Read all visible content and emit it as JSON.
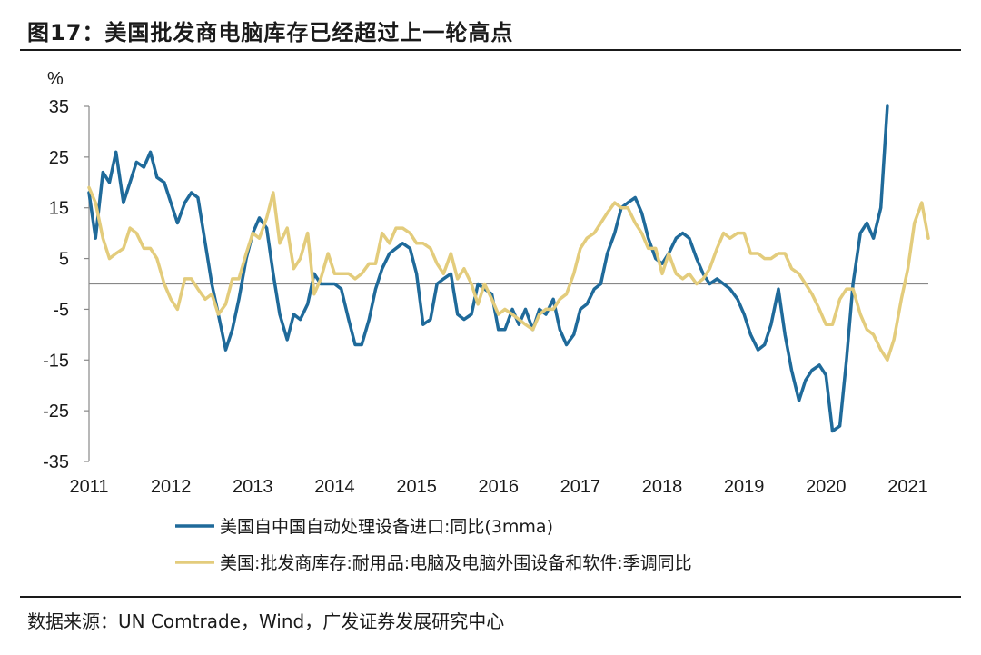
{
  "header": {
    "title": "图17：美国批发商电脑库存已经超过上一轮高点"
  },
  "footer": {
    "source": "数据来源：UN Comtrade，Wind，广发证券发展研究中心"
  },
  "colors": {
    "series1": "#1F6A9A",
    "series2": "#E3CC7C",
    "axis": "#888888"
  },
  "chart_data": {
    "type": "line",
    "title": "美国批发商电脑库存已经超过上一轮高点",
    "ylabel": "%",
    "xlabel": "",
    "ylim": [
      -35,
      35
    ],
    "yticks": [
      "35",
      "25",
      "15",
      "5",
      "-5",
      "-15",
      "-25",
      "-35"
    ],
    "yticks_values": [
      35,
      25,
      15,
      5,
      -5,
      -15,
      -25,
      -35
    ],
    "xticks": [
      "2011",
      "2012",
      "2013",
      "2014",
      "2015",
      "2016",
      "2017",
      "2018",
      "2019",
      "2020",
      "2021"
    ],
    "xticks_values": [
      2011,
      2012,
      2013,
      2014,
      2015,
      2016,
      2017,
      2018,
      2019,
      2020,
      2021
    ],
    "xlim": [
      2011,
      2021.25
    ],
    "legend_position": "bottom",
    "series": [
      {
        "name": "美国自中国自动处理设备进口:同比(3mma)",
        "points": [
          [
            2011.0,
            18
          ],
          [
            2011.08,
            9
          ],
          [
            2011.17,
            22
          ],
          [
            2011.25,
            20
          ],
          [
            2011.33,
            26
          ],
          [
            2011.42,
            16
          ],
          [
            2011.5,
            20
          ],
          [
            2011.58,
            24
          ],
          [
            2011.67,
            23
          ],
          [
            2011.75,
            26
          ],
          [
            2011.83,
            21
          ],
          [
            2011.92,
            20
          ],
          [
            2012.0,
            16
          ],
          [
            2012.08,
            12
          ],
          [
            2012.17,
            16
          ],
          [
            2012.25,
            18
          ],
          [
            2012.33,
            17
          ],
          [
            2012.42,
            8
          ],
          [
            2012.5,
            0
          ],
          [
            2012.58,
            -6
          ],
          [
            2012.67,
            -13
          ],
          [
            2012.75,
            -9
          ],
          [
            2012.83,
            -3
          ],
          [
            2012.92,
            5
          ],
          [
            2013.0,
            10
          ],
          [
            2013.08,
            13
          ],
          [
            2013.17,
            11
          ],
          [
            2013.25,
            2
          ],
          [
            2013.33,
            -6
          ],
          [
            2013.42,
            -11
          ],
          [
            2013.5,
            -6
          ],
          [
            2013.58,
            -7
          ],
          [
            2013.67,
            -4
          ],
          [
            2013.75,
            2
          ],
          [
            2013.83,
            0
          ],
          [
            2013.92,
            0
          ],
          [
            2014.0,
            0
          ],
          [
            2014.08,
            -1
          ],
          [
            2014.17,
            -7
          ],
          [
            2014.25,
            -12
          ],
          [
            2014.33,
            -12
          ],
          [
            2014.42,
            -7
          ],
          [
            2014.5,
            -1
          ],
          [
            2014.58,
            3
          ],
          [
            2014.67,
            6
          ],
          [
            2014.75,
            7
          ],
          [
            2014.83,
            8
          ],
          [
            2014.92,
            7
          ],
          [
            2015.0,
            2
          ],
          [
            2015.08,
            -8
          ],
          [
            2015.17,
            -7
          ],
          [
            2015.25,
            0
          ],
          [
            2015.33,
            1
          ],
          [
            2015.42,
            2
          ],
          [
            2015.5,
            -6
          ],
          [
            2015.58,
            -7
          ],
          [
            2015.67,
            -6
          ],
          [
            2015.75,
            0
          ],
          [
            2015.83,
            -1
          ],
          [
            2015.92,
            -2
          ],
          [
            2016.0,
            -9
          ],
          [
            2016.08,
            -9
          ],
          [
            2016.17,
            -5
          ],
          [
            2016.25,
            -8
          ],
          [
            2016.33,
            -5
          ],
          [
            2016.42,
            -9
          ],
          [
            2016.5,
            -5
          ],
          [
            2016.58,
            -6
          ],
          [
            2016.67,
            -3
          ],
          [
            2016.75,
            -9
          ],
          [
            2016.83,
            -12
          ],
          [
            2016.92,
            -10
          ],
          [
            2017.0,
            -5
          ],
          [
            2017.08,
            -4
          ],
          [
            2017.17,
            -1
          ],
          [
            2017.25,
            0
          ],
          [
            2017.33,
            6
          ],
          [
            2017.42,
            10
          ],
          [
            2017.5,
            15
          ],
          [
            2017.58,
            16
          ],
          [
            2017.67,
            17
          ],
          [
            2017.75,
            14
          ],
          [
            2017.83,
            9
          ],
          [
            2017.92,
            5
          ],
          [
            2018.0,
            4
          ],
          [
            2018.08,
            6
          ],
          [
            2018.17,
            9
          ],
          [
            2018.25,
            10
          ],
          [
            2018.33,
            9
          ],
          [
            2018.42,
            5
          ],
          [
            2018.5,
            2
          ],
          [
            2018.58,
            0
          ],
          [
            2018.67,
            1
          ],
          [
            2018.75,
            0
          ],
          [
            2018.83,
            -1
          ],
          [
            2018.92,
            -3
          ],
          [
            2019.0,
            -6
          ],
          [
            2019.08,
            -10
          ],
          [
            2019.17,
            -13
          ],
          [
            2019.25,
            -12
          ],
          [
            2019.33,
            -8
          ],
          [
            2019.42,
            -1
          ],
          [
            2019.5,
            -10
          ],
          [
            2019.58,
            -17
          ],
          [
            2019.67,
            -23
          ],
          [
            2019.75,
            -19
          ],
          [
            2019.83,
            -17
          ],
          [
            2019.92,
            -16
          ],
          [
            2020.0,
            -18
          ],
          [
            2020.08,
            -29
          ],
          [
            2020.17,
            -28
          ],
          [
            2020.25,
            -15
          ],
          [
            2020.33,
            0
          ],
          [
            2020.42,
            10
          ],
          [
            2020.5,
            12
          ],
          [
            2020.58,
            9
          ],
          [
            2020.67,
            15
          ],
          [
            2020.75,
            35
          ]
        ]
      },
      {
        "name": "美国:批发商库存:耐用品:电脑及电脑外围设备和软件:季调同比",
        "points": [
          [
            2011.0,
            19
          ],
          [
            2011.08,
            16
          ],
          [
            2011.17,
            9
          ],
          [
            2011.25,
            5
          ],
          [
            2011.33,
            6
          ],
          [
            2011.42,
            7
          ],
          [
            2011.5,
            11
          ],
          [
            2011.58,
            10
          ],
          [
            2011.67,
            7
          ],
          [
            2011.75,
            7
          ],
          [
            2011.83,
            5
          ],
          [
            2011.92,
            0
          ],
          [
            2012.0,
            -3
          ],
          [
            2012.08,
            -5
          ],
          [
            2012.17,
            1
          ],
          [
            2012.25,
            1
          ],
          [
            2012.33,
            -1
          ],
          [
            2012.42,
            -3
          ],
          [
            2012.5,
            -2
          ],
          [
            2012.58,
            -6
          ],
          [
            2012.67,
            -4
          ],
          [
            2012.75,
            1
          ],
          [
            2012.83,
            1
          ],
          [
            2012.92,
            6
          ],
          [
            2013.0,
            10
          ],
          [
            2013.08,
            9
          ],
          [
            2013.17,
            13
          ],
          [
            2013.25,
            18
          ],
          [
            2013.33,
            8
          ],
          [
            2013.42,
            11
          ],
          [
            2013.5,
            3
          ],
          [
            2013.58,
            5
          ],
          [
            2013.67,
            10
          ],
          [
            2013.75,
            -2
          ],
          [
            2013.83,
            1
          ],
          [
            2013.92,
            6
          ],
          [
            2014.0,
            2
          ],
          [
            2014.08,
            2
          ],
          [
            2014.17,
            2
          ],
          [
            2014.25,
            1
          ],
          [
            2014.33,
            2
          ],
          [
            2014.42,
            4
          ],
          [
            2014.5,
            4
          ],
          [
            2014.58,
            10
          ],
          [
            2014.67,
            8
          ],
          [
            2014.75,
            11
          ],
          [
            2014.83,
            11
          ],
          [
            2014.92,
            10
          ],
          [
            2015.0,
            8
          ],
          [
            2015.08,
            8
          ],
          [
            2015.17,
            7
          ],
          [
            2015.25,
            4
          ],
          [
            2015.33,
            2
          ],
          [
            2015.42,
            6
          ],
          [
            2015.5,
            1
          ],
          [
            2015.58,
            3
          ],
          [
            2015.67,
            0
          ],
          [
            2015.75,
            -4
          ],
          [
            2015.83,
            0
          ],
          [
            2015.92,
            -3
          ],
          [
            2016.0,
            -6
          ],
          [
            2016.08,
            -5
          ],
          [
            2016.17,
            -6
          ],
          [
            2016.25,
            -7
          ],
          [
            2016.33,
            -8
          ],
          [
            2016.42,
            -9
          ],
          [
            2016.5,
            -6
          ],
          [
            2016.58,
            -5
          ],
          [
            2016.67,
            -5
          ],
          [
            2016.75,
            -3
          ],
          [
            2016.83,
            -2
          ],
          [
            2016.92,
            2
          ],
          [
            2017.0,
            7
          ],
          [
            2017.08,
            9
          ],
          [
            2017.17,
            10
          ],
          [
            2017.25,
            12
          ],
          [
            2017.33,
            14
          ],
          [
            2017.42,
            16
          ],
          [
            2017.5,
            15
          ],
          [
            2017.58,
            15
          ],
          [
            2017.67,
            12
          ],
          [
            2017.75,
            10
          ],
          [
            2017.83,
            7
          ],
          [
            2017.92,
            7
          ],
          [
            2018.0,
            2
          ],
          [
            2018.08,
            6
          ],
          [
            2018.17,
            2
          ],
          [
            2018.25,
            1
          ],
          [
            2018.33,
            2
          ],
          [
            2018.42,
            0
          ],
          [
            2018.5,
            1
          ],
          [
            2018.58,
            3
          ],
          [
            2018.67,
            7
          ],
          [
            2018.75,
            10
          ],
          [
            2018.83,
            9
          ],
          [
            2018.92,
            10
          ],
          [
            2019.0,
            10
          ],
          [
            2019.08,
            6
          ],
          [
            2019.17,
            6
          ],
          [
            2019.25,
            5
          ],
          [
            2019.33,
            5
          ],
          [
            2019.42,
            6
          ],
          [
            2019.5,
            6
          ],
          [
            2019.58,
            3
          ],
          [
            2019.67,
            2
          ],
          [
            2019.75,
            0
          ],
          [
            2019.83,
            -2
          ],
          [
            2019.92,
            -5
          ],
          [
            2020.0,
            -8
          ],
          [
            2020.08,
            -8
          ],
          [
            2020.17,
            -3
          ],
          [
            2020.25,
            -1
          ],
          [
            2020.33,
            -1
          ],
          [
            2020.42,
            -6
          ],
          [
            2020.5,
            -9
          ],
          [
            2020.58,
            -10
          ],
          [
            2020.67,
            -13
          ],
          [
            2020.75,
            -15
          ],
          [
            2020.83,
            -11
          ],
          [
            2020.92,
            -3
          ],
          [
            2021.0,
            3
          ],
          [
            2021.08,
            12
          ],
          [
            2021.17,
            16
          ],
          [
            2021.25,
            9
          ]
        ]
      }
    ]
  }
}
